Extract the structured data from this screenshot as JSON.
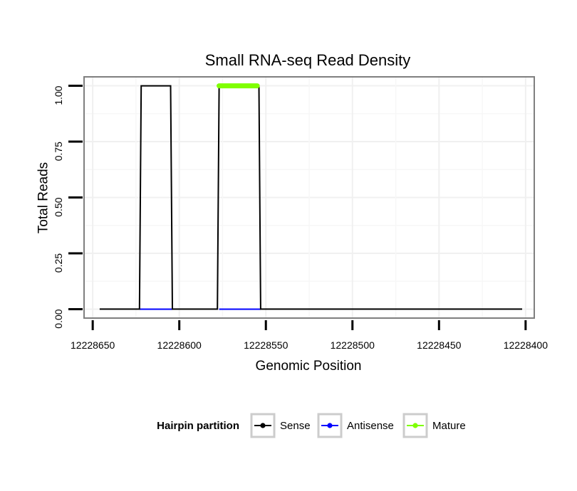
{
  "chart_data": {
    "type": "line",
    "title": "Small RNA-seq Read Density",
    "xlabel": "Genomic Position",
    "ylabel": "Total Reads",
    "x_reversed": true,
    "xlim": [
      12228655,
      12228395
    ],
    "ylim": [
      -0.04,
      1.04
    ],
    "x_ticks": [
      12228650,
      12228600,
      12228550,
      12228500,
      12228450,
      12228400
    ],
    "x_tick_labels": [
      "12228650",
      "12228600",
      "12228550",
      "12228500",
      "12228450",
      "12228400"
    ],
    "y_ticks": [
      0,
      0.25,
      0.5,
      0.75,
      1.0
    ],
    "y_tick_labels": [
      "0.00",
      "0.25",
      "0.50",
      "0.75",
      "1.00"
    ],
    "grid": true,
    "legend": {
      "title": "Hairpin partition",
      "position": "bottom",
      "entries": [
        "Sense",
        "Antisense",
        "Mature"
      ]
    },
    "series": [
      {
        "name": "Sense",
        "color": "#000000",
        "x": [
          12228646,
          12228623,
          12228622,
          12228605,
          12228604,
          12228578,
          12228577,
          12228554,
          12228553,
          12228402
        ],
        "values": [
          0,
          0,
          1,
          1,
          0,
          0,
          1,
          1,
          0,
          0
        ]
      },
      {
        "name": "Antisense",
        "color": "#0000ff",
        "x": [
          12228623,
          12228604,
          12228577,
          12228553
        ],
        "values": [
          0,
          0,
          0,
          0
        ],
        "segments": [
          [
            0,
            1
          ],
          [
            2,
            3
          ]
        ]
      },
      {
        "name": "Mature",
        "color": "#7fff00",
        "x": [
          12228577,
          12228555
        ],
        "values": [
          1,
          1
        ]
      }
    ]
  }
}
